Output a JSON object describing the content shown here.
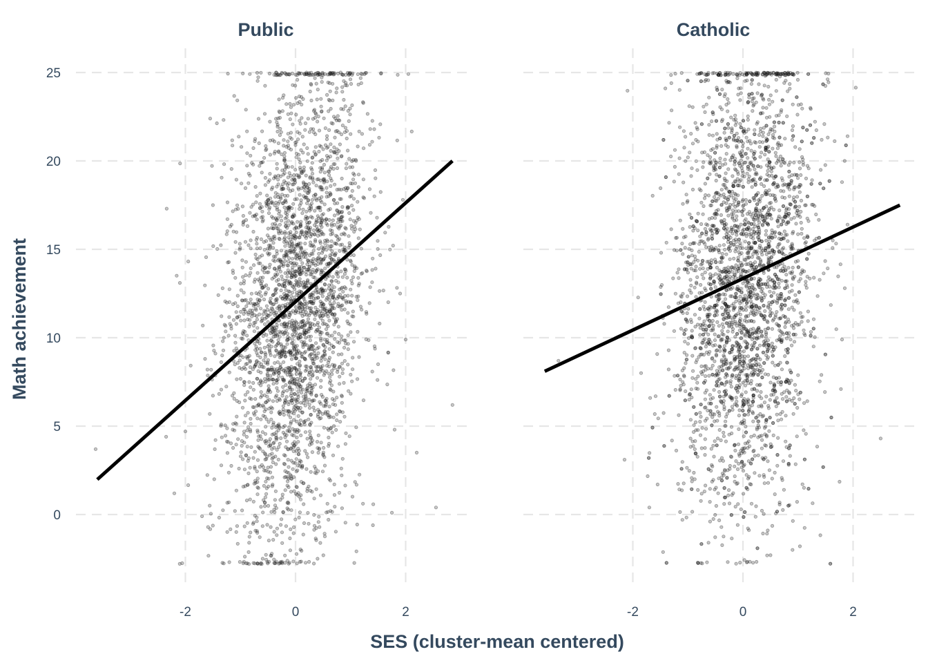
{
  "chart_data": {
    "type": "scatter",
    "xlabel": "SES (cluster-mean centered)",
    "ylabel": "Math achievement",
    "xlim": [
      -3.9,
      3.2
    ],
    "ylim": [
      -3.2,
      26
    ],
    "x_ticks": [
      -2,
      0,
      2
    ],
    "x_tick_labels": [
      "-2",
      "0",
      "2"
    ],
    "y_ticks": [
      0,
      5,
      10,
      15,
      20,
      25
    ],
    "y_tick_labels": [
      "0",
      "5",
      "10",
      "15",
      "20",
      "25"
    ],
    "grid": true,
    "legend": "none",
    "panels": [
      {
        "title": "Public",
        "fit_line": {
          "x": [
            -3.6,
            2.85
          ],
          "y": [
            1.98,
            20.0
          ]
        },
        "points": [
          [
            -3.63,
            3.7
          ],
          [
            -2.34,
            17.3
          ],
          [
            -2.1,
            13.1
          ],
          [
            -2.2,
            1.2
          ],
          [
            -2.0,
            4.7
          ],
          [
            -1.55,
            22.4
          ],
          [
            -1.5,
            17.5
          ],
          [
            -1.6,
            8.2
          ],
          [
            0.62,
            24.4
          ],
          [
            0.2,
            25.0
          ],
          [
            0.0,
            20.9
          ],
          [
            -0.15,
            14.1
          ],
          [
            0.1,
            12.6
          ],
          [
            0.3,
            7.3
          ],
          [
            -0.4,
            5.2
          ],
          [
            -0.2,
            2.1
          ],
          [
            0.4,
            -2.5
          ],
          [
            1.5,
            8.5
          ],
          [
            1.8,
            4.8
          ],
          [
            2.0,
            9.9
          ],
          [
            2.2,
            3.5
          ],
          [
            2.55,
            0.4
          ],
          [
            2.85,
            6.2
          ],
          [
            1.95,
            17.8
          ],
          [
            1.9,
            12.5
          ],
          [
            1.75,
            0.1
          ],
          [
            -2.35,
            4.4
          ],
          [
            -1.3,
            10.0
          ],
          [
            1.1,
            20.0
          ],
          [
            -0.9,
            22.9
          ]
        ]
      },
      {
        "title": "Catholic",
        "fit_line": {
          "x": [
            -3.6,
            2.85
          ],
          "y": [
            8.1,
            17.5
          ]
        },
        "points": [
          [
            -3.35,
            8.7
          ],
          [
            -2.15,
            3.1
          ],
          [
            -1.85,
            8.0
          ],
          [
            -1.7,
            0.4
          ],
          [
            -1.55,
            1.7
          ],
          [
            -1.3,
            24.4
          ],
          [
            0.2,
            23.2
          ],
          [
            0.0,
            17.8
          ],
          [
            -0.2,
            14.0
          ],
          [
            0.1,
            10.3
          ],
          [
            0.3,
            6.7
          ],
          [
            -0.4,
            4.2
          ],
          [
            -0.2,
            1.1
          ],
          [
            0.5,
            -2.3
          ],
          [
            1.8,
            9.9
          ],
          [
            1.85,
            12.8
          ],
          [
            1.9,
            16.4
          ],
          [
            1.8,
            18.8
          ],
          [
            1.9,
            21.4
          ],
          [
            2.5,
            4.3
          ],
          [
            1.3,
            15.5
          ],
          [
            0.9,
            -2.0
          ],
          [
            -1.1,
            -0.3
          ],
          [
            -1.0,
            20.2
          ],
          [
            0.9,
            24.9
          ]
        ]
      }
    ]
  }
}
